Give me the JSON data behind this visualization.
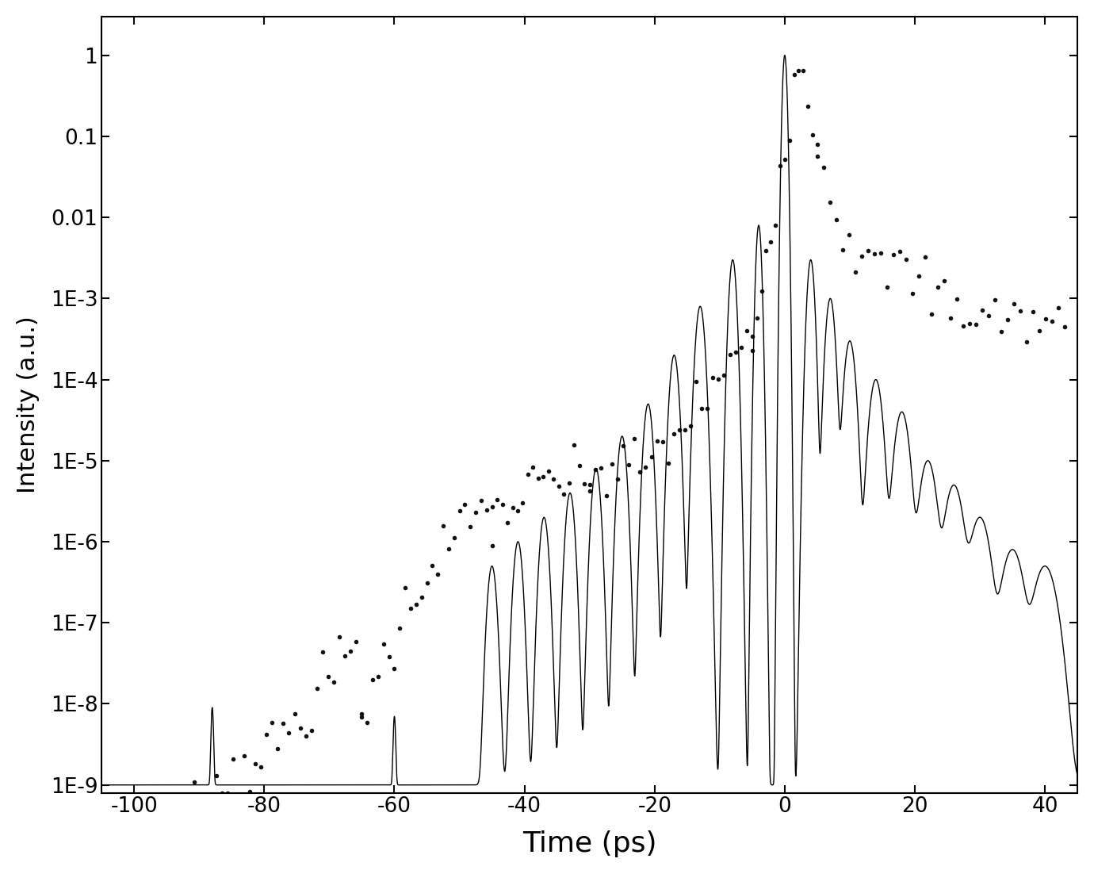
{
  "title": "",
  "xlabel": "Time (ps)",
  "ylabel": "Intensity (a.u.)",
  "xlim": [
    -105,
    45
  ],
  "ylim": [
    8e-10,
    3.0
  ],
  "xticks": [
    -100,
    -80,
    -60,
    -40,
    -20,
    0,
    20,
    40
  ],
  "yticks": [
    1,
    0.1,
    0.01,
    0.001,
    0.0001,
    1e-05,
    1e-06,
    1e-07,
    1e-08,
    1e-09
  ],
  "ytick_labels": [
    "1",
    "0.1",
    "0.01",
    "1E-3",
    "1E-4",
    "1E-5",
    "1E-6",
    "1E-7",
    "1E-8",
    "1E-9"
  ],
  "background_color": "#ffffff",
  "line_color": "#000000",
  "dot_color": "#111111"
}
